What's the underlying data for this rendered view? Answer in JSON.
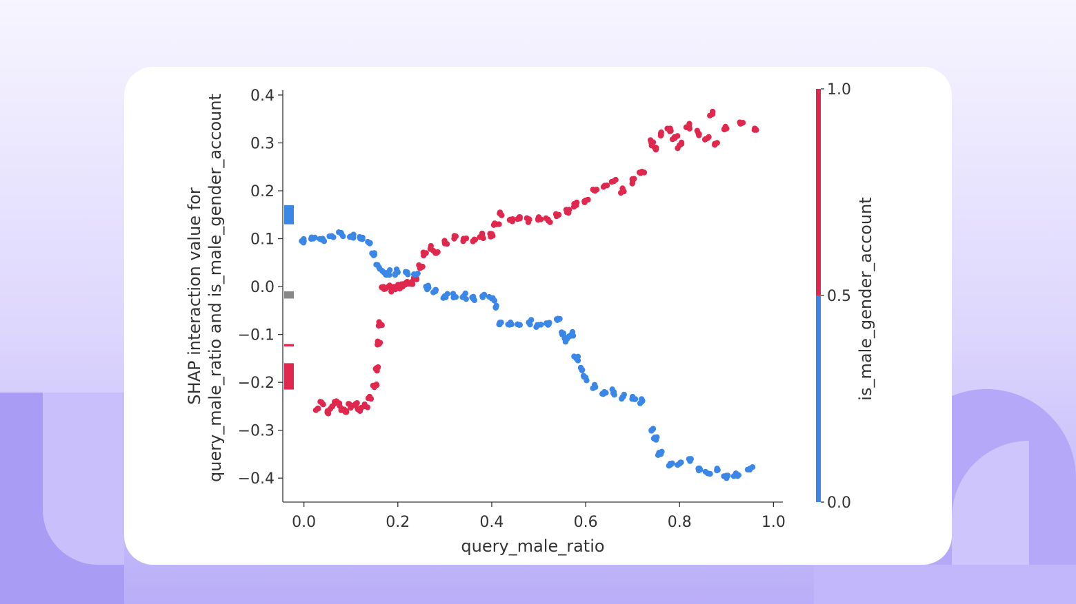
{
  "chart_data": {
    "type": "scatter",
    "xlabel": "query_male_ratio",
    "ylabel_line1": "SHAP interaction value for",
    "ylabel_line2": "query_male_ratio and is_male_gender_account",
    "xlim": [
      -0.045,
      1.02
    ],
    "ylim": [
      -0.45,
      0.41
    ],
    "x_ticks": [
      0.0,
      0.2,
      0.4,
      0.6,
      0.8,
      1.0
    ],
    "x_tick_labels": [
      "0.0",
      "0.2",
      "0.4",
      "0.6",
      "0.8",
      "1.0"
    ],
    "y_ticks": [
      0.4,
      0.3,
      0.2,
      0.1,
      0.0,
      -0.1,
      -0.2,
      -0.3,
      -0.4
    ],
    "y_tick_labels": [
      "0.4",
      "0.3",
      "0.2",
      "0.1",
      "0.0",
      "−0.1",
      "−0.2",
      "−0.3",
      "−0.4"
    ],
    "colorbar": {
      "label": "is_male_gender_account",
      "ticks": [
        "1.0",
        "0.5",
        "0.0"
      ],
      "color_low": "#3b87e8",
      "color_high": "#e0284e"
    },
    "colors": {
      "male": "#e0284e",
      "female": "#3b87e8",
      "missing": "#888888"
    },
    "series": [
      {
        "color_value": 1.0,
        "x": [
          0.03,
          0.04,
          0.05,
          0.06,
          0.07,
          0.08,
          0.09,
          0.1,
          0.11,
          0.12,
          0.13,
          0.14,
          0.15,
          0.155,
          0.16,
          0.165,
          0.17,
          0.18,
          0.19,
          0.2,
          0.21,
          0.22,
          0.23,
          0.24,
          0.25,
          0.26,
          0.27,
          0.28,
          0.3,
          0.32,
          0.34,
          0.36,
          0.38,
          0.4,
          0.41,
          0.42,
          0.44,
          0.46,
          0.48,
          0.5,
          0.52,
          0.54,
          0.56,
          0.58,
          0.6,
          0.62,
          0.64,
          0.66,
          0.68,
          0.7,
          0.72,
          0.74,
          0.75,
          0.76,
          0.78,
          0.79,
          0.8,
          0.82,
          0.84,
          0.86,
          0.87,
          0.88,
          0.9,
          0.93,
          0.96
        ],
        "y": [
          -0.255,
          -0.245,
          -0.26,
          -0.25,
          -0.24,
          -0.255,
          -0.26,
          -0.25,
          -0.245,
          -0.255,
          -0.25,
          -0.23,
          -0.21,
          -0.17,
          -0.12,
          -0.08,
          -0.005,
          0.0,
          -0.005,
          0.0,
          0.005,
          0.01,
          0.01,
          0.015,
          0.04,
          0.07,
          0.08,
          0.07,
          0.09,
          0.1,
          0.1,
          0.095,
          0.105,
          0.11,
          0.13,
          0.15,
          0.14,
          0.145,
          0.14,
          0.145,
          0.14,
          0.15,
          0.155,
          0.17,
          0.18,
          0.2,
          0.21,
          0.22,
          0.2,
          0.22,
          0.24,
          0.3,
          0.29,
          0.32,
          0.33,
          0.31,
          0.295,
          0.335,
          0.32,
          0.31,
          0.36,
          0.3,
          0.33,
          0.34,
          0.33
        ]
      },
      {
        "color_value": 0.0,
        "x": [
          0.0,
          0.02,
          0.04,
          0.06,
          0.08,
          0.1,
          0.12,
          0.14,
          0.15,
          0.16,
          0.17,
          0.18,
          0.2,
          0.22,
          0.24,
          0.26,
          0.28,
          0.3,
          0.32,
          0.34,
          0.36,
          0.38,
          0.4,
          0.41,
          0.42,
          0.44,
          0.46,
          0.48,
          0.5,
          0.52,
          0.54,
          0.55,
          0.56,
          0.57,
          0.58,
          0.59,
          0.6,
          0.62,
          0.64,
          0.66,
          0.68,
          0.7,
          0.72,
          0.74,
          0.75,
          0.76,
          0.78,
          0.8,
          0.82,
          0.84,
          0.86,
          0.88,
          0.9,
          0.92,
          0.95
        ],
        "y": [
          0.095,
          0.1,
          0.1,
          0.105,
          0.11,
          0.105,
          0.1,
          0.09,
          0.07,
          0.04,
          0.03,
          0.03,
          0.03,
          0.03,
          0.025,
          0.0,
          -0.01,
          -0.02,
          -0.02,
          -0.02,
          -0.025,
          -0.02,
          -0.025,
          -0.04,
          -0.075,
          -0.075,
          -0.08,
          -0.075,
          -0.08,
          -0.08,
          -0.07,
          -0.1,
          -0.11,
          -0.1,
          -0.15,
          -0.17,
          -0.19,
          -0.21,
          -0.22,
          -0.22,
          -0.23,
          -0.23,
          -0.24,
          -0.3,
          -0.32,
          -0.35,
          -0.37,
          -0.37,
          -0.36,
          -0.38,
          -0.39,
          -0.38,
          -0.4,
          -0.39,
          -0.38
        ]
      }
    ],
    "missing_values_strip": [
      {
        "color_value": 0.0,
        "y_range": [
          0.13,
          0.17
        ]
      },
      {
        "color_value": null,
        "y_range": [
          -0.025,
          -0.01
        ]
      },
      {
        "color_value": 1.0,
        "y_range": [
          -0.125,
          -0.12
        ]
      },
      {
        "color_value": 1.0,
        "y_range": [
          -0.215,
          -0.16
        ]
      }
    ]
  }
}
